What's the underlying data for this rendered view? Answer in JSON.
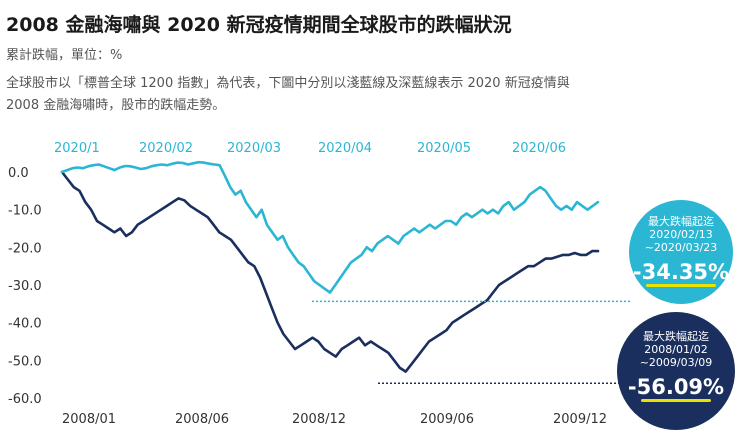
{
  "header": {
    "title": "2008 金融海嘯與 2020 新冠疫情期間全球股市的跌幅狀況",
    "subtitle": "累計跌幅，單位：%",
    "description_line1": "全球股市以「標普全球 1200 指數」為代表，下圖中分別以淺藍線及深藍線表示 2020 新冠疫情與",
    "description_line2": "2008 金融海嘯時，股市的跌幅走勢。"
  },
  "colors": {
    "light_series": "#2bb6d4",
    "dark_series": "#1b2f5e",
    "badge_light": "#2bb6d4",
    "badge_dark": "#1b2f5e",
    "highlight": "#e8e300",
    "axis_text": "#333333",
    "top_axis_text": "#2bb6d4"
  },
  "chart_data": {
    "type": "line",
    "title": "2008 金融海嘯與 2020 新冠疫情期間全球股市的跌幅狀況",
    "ylabel": "累計跌幅，單位：%",
    "ylim": [
      -60,
      0
    ],
    "yticks": [
      "0.0",
      "-10.0",
      "-20.0",
      "-30.0",
      "-40.0",
      "-50.0",
      "-60.0"
    ],
    "ytick_values": [
      0,
      -10,
      -20,
      -30,
      -40,
      -50,
      -60
    ],
    "top_axis_labels": [
      "2020/1",
      "2020/02",
      "2020/03",
      "2020/04",
      "2020/05",
      "2020/06"
    ],
    "bottom_axis_labels": [
      "2008/01",
      "2008/06",
      "2008/12",
      "2009/06",
      "2009/12"
    ],
    "series": [
      {
        "name": "2020 新冠疫情",
        "color": "#2bb6d4",
        "values": [
          0,
          0.5,
          1,
          1.2,
          1,
          1.5,
          1.8,
          2,
          1.5,
          1,
          0.5,
          1.2,
          1.6,
          1.5,
          1.2,
          0.8,
          1,
          1.5,
          1.8,
          2,
          1.8,
          2.2,
          2.5,
          2.4,
          2,
          2.3,
          2.6,
          2.5,
          2.2,
          2,
          1.8,
          -1,
          -4,
          -6,
          -5,
          -8,
          -10,
          -12,
          -10,
          -14,
          -16,
          -18,
          -17,
          -20,
          -22,
          -24,
          -25,
          -27,
          -29,
          -30,
          -31,
          -32,
          -30,
          -28,
          -26,
          -24,
          -23,
          -22,
          -20,
          -21,
          -19,
          -18,
          -17,
          -18,
          -19,
          -17,
          -16,
          -15,
          -16,
          -15,
          -14,
          -15,
          -14,
          -13,
          -13,
          -14,
          -12,
          -11,
          -12,
          -11,
          -10,
          -11,
          -10,
          -11,
          -9,
          -8,
          -10,
          -9,
          -8,
          -6,
          -5,
          -4,
          -5,
          -7,
          -9,
          -10,
          -9,
          -10,
          -8,
          -9,
          -10,
          -9,
          -8
        ]
      },
      {
        "name": "2008 金融海嘯",
        "color": "#1b2f5e",
        "values": [
          0,
          -2,
          -4,
          -5,
          -8,
          -10,
          -13,
          -14,
          -15,
          -16,
          -15,
          -17,
          -16,
          -14,
          -13,
          -12,
          -11,
          -10,
          -9,
          -8,
          -7,
          -7.5,
          -9,
          -10,
          -11,
          -12,
          -14,
          -16,
          -17,
          -18,
          -20,
          -22,
          -24,
          -25,
          -28,
          -32,
          -36,
          -40,
          -43,
          -45,
          -47,
          -46,
          -45,
          -44,
          -45,
          -47,
          -48,
          -49,
          -47,
          -46,
          -45,
          -44,
          -46,
          -45,
          -46,
          -47,
          -48,
          -50,
          -52,
          -53,
          -51,
          -49,
          -47,
          -45,
          -44,
          -43,
          -42,
          -40,
          -39,
          -38,
          -37,
          -36,
          -35,
          -34,
          -32,
          -30,
          -29,
          -28,
          -27,
          -26,
          -25,
          -25,
          -24,
          -23,
          -23,
          -22.5,
          -22,
          -22,
          -21.5,
          -22,
          -22,
          -21,
          -21
        ]
      }
    ],
    "annotations": [
      {
        "label": "最大跌幅起迄",
        "period_start": "2020/02/13",
        "period_end": "~2020/03/23",
        "value_text": "-34.35%",
        "value": -34.35
      },
      {
        "label": "最大跌幅起迄",
        "period_start": "2008/01/02",
        "period_end": "~2009/03/09",
        "value_text": "-56.09%",
        "value": -56.09
      }
    ]
  }
}
